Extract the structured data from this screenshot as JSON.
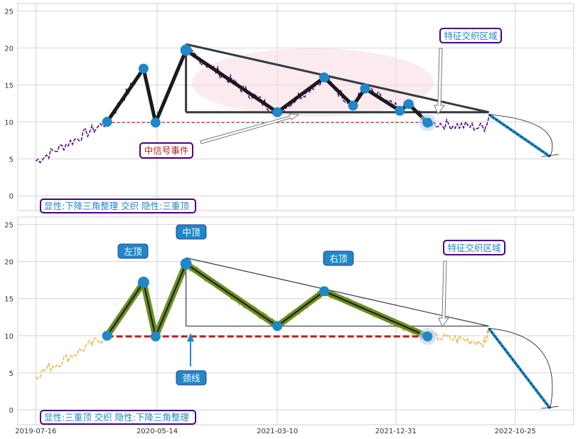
{
  "chart_data": [
    {
      "type": "line",
      "panel": "top",
      "ylim": [
        -2,
        26
      ],
      "yticks": [
        0,
        5,
        10,
        15,
        20,
        25
      ],
      "grid": true,
      "price_color": "#4b0082",
      "pattern_color": "#1a1a1a",
      "node_color": "#1e88c8",
      "neckline_color": "#b22222",
      "triangle_color": "#333a44",
      "pattern_points": [
        {
          "x": "2020-01-10",
          "y": 10
        },
        {
          "x": "2020-04-10",
          "y": 17.2
        },
        {
          "x": "2020-05-10",
          "y": 9.9
        },
        {
          "x": "2020-07-25",
          "y": 19.7
        },
        {
          "x": "2021-03-10",
          "y": 11.3
        },
        {
          "x": "2021-07-05",
          "y": 16.0
        },
        {
          "x": "2021-09-15",
          "y": 12.2
        },
        {
          "x": "2021-10-15",
          "y": 14.5
        },
        {
          "x": "2022-01-10",
          "y": 11.5
        },
        {
          "x": "2022-02-01",
          "y": 12.4
        },
        {
          "x": "2022-03-20",
          "y": 9.9
        }
      ],
      "triangle": {
        "apex_x": "2022-08-20",
        "top_start": [
          "2020-07-25",
          20.5
        ],
        "base_y": 11.3
      },
      "neckline_y": 9.9,
      "forecast_arrow": {
        "from": [
          "2022-08-20",
          11.0
        ],
        "to": [
          "2023-01-20",
          5.3
        ]
      },
      "annotations": [
        {
          "text": "中信号事件",
          "color": "red"
        },
        {
          "text": "特征交织区域",
          "color": "blue"
        }
      ],
      "caption": "显性:下降三角整理 交织 隐性:三重顶"
    },
    {
      "type": "line",
      "panel": "bottom",
      "ylim": [
        -2,
        26
      ],
      "yticks": [
        0,
        5,
        10,
        15,
        20,
        25
      ],
      "grid": true,
      "price_color": "#e8b23c",
      "pattern_color": "#6b8e23",
      "node_color": "#1e88c8",
      "neckline_color": "#b22222",
      "triangle_color": "#333a44",
      "pattern_points": [
        {
          "x": "2020-01-10",
          "y": 10
        },
        {
          "x": "2020-04-10",
          "y": 17.2
        },
        {
          "x": "2020-05-10",
          "y": 9.9
        },
        {
          "x": "2020-07-25",
          "y": 19.7
        },
        {
          "x": "2021-03-10",
          "y": 11.3
        },
        {
          "x": "2021-07-05",
          "y": 16.0
        },
        {
          "x": "2022-03-20",
          "y": 9.9
        }
      ],
      "triangle": {
        "apex_x": "2022-08-20",
        "top_start": [
          "2020-07-25",
          20.5
        ],
        "base_y": 11.3
      },
      "neckline_y": 9.9,
      "forecast_arrow": {
        "from": [
          "2022-08-20",
          11.0
        ],
        "to": [
          "2023-01-20",
          0.2
        ]
      },
      "labels": {
        "left_top": "左顶",
        "middle_top": "中顶",
        "right_top": "右顶",
        "neckline": "颈线",
        "zone": "特征交织区域"
      },
      "caption": "显性:三重顶 交织 隐性:下降三角整理"
    }
  ],
  "x_axis": {
    "ticks": [
      "2019-07-16",
      "2020-05-14",
      "2021-03-10",
      "2021-12-31",
      "2022-10-25"
    ],
    "range": [
      "2019-06-01",
      "2023-03-20"
    ]
  }
}
